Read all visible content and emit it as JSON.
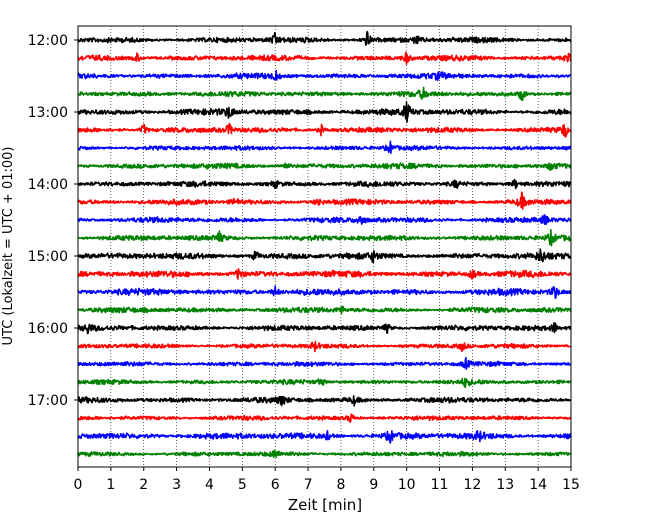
{
  "chart_data": {
    "type": "line",
    "title": "",
    "xlabel": "Zeit  [min]",
    "ylabel": "UTC (Lokalzeit = UTC + 01:00)",
    "xlim": [
      0,
      15
    ],
    "x_ticks": [
      "0",
      "1",
      "2",
      "3",
      "4",
      "5",
      "6",
      "7",
      "8",
      "9",
      "10",
      "11",
      "12",
      "13",
      "14",
      "15"
    ],
    "y_tick_labels": [
      "12:00",
      "13:00",
      "14:00",
      "15:00",
      "16:00",
      "17:00"
    ],
    "grid": "vertical dotted at each minute",
    "trace_interval_minutes": 15,
    "colors_cycle": [
      "#000000",
      "#ff0000",
      "#0000ff",
      "#008000"
    ],
    "traces": [
      {
        "start": "12:00",
        "color": "#000000",
        "amp": 3,
        "spikes": [
          [
            6.0,
            6
          ],
          [
            8.8,
            9
          ],
          [
            10.3,
            4
          ]
        ]
      },
      {
        "start": "12:15",
        "color": "#ff0000",
        "amp": 3,
        "spikes": [
          [
            1.8,
            5
          ],
          [
            10.0,
            6
          ],
          [
            14.9,
            5
          ]
        ]
      },
      {
        "start": "12:30",
        "color": "#0000ff",
        "amp": 3,
        "spikes": [
          [
            6.0,
            5
          ],
          [
            11.0,
            4
          ]
        ]
      },
      {
        "start": "12:45",
        "color": "#008000",
        "amp": 3,
        "spikes": [
          [
            10.5,
            5
          ],
          [
            13.5,
            7
          ]
        ]
      },
      {
        "start": "13:00",
        "color": "#000000",
        "amp": 3.5,
        "spikes": [
          [
            4.6,
            6
          ],
          [
            10.0,
            10
          ]
        ]
      },
      {
        "start": "13:15",
        "color": "#ff0000",
        "amp": 3,
        "spikes": [
          [
            2.0,
            6
          ],
          [
            4.6,
            6
          ],
          [
            7.4,
            5
          ],
          [
            14.8,
            8
          ]
        ]
      },
      {
        "start": "13:30",
        "color": "#0000ff",
        "amp": 2.5,
        "spikes": [
          [
            9.5,
            6
          ]
        ]
      },
      {
        "start": "13:45",
        "color": "#008000",
        "amp": 3,
        "spikes": [
          [
            6.3,
            4
          ],
          [
            14.4,
            5
          ]
        ]
      },
      {
        "start": "14:00",
        "color": "#000000",
        "amp": 3,
        "spikes": [
          [
            6.0,
            4
          ],
          [
            11.5,
            4
          ],
          [
            13.3,
            5
          ]
        ]
      },
      {
        "start": "14:15",
        "color": "#ff0000",
        "amp": 3,
        "spikes": [
          [
            4.8,
            5
          ],
          [
            7.3,
            5
          ],
          [
            13.5,
            8
          ]
        ]
      },
      {
        "start": "14:30",
        "color": "#0000ff",
        "amp": 3,
        "spikes": [
          [
            8.6,
            6
          ],
          [
            14.2,
            5
          ]
        ]
      },
      {
        "start": "14:45",
        "color": "#008000",
        "amp": 3,
        "spikes": [
          [
            4.3,
            5
          ],
          [
            14.4,
            7
          ]
        ]
      },
      {
        "start": "15:00",
        "color": "#000000",
        "amp": 3.5,
        "spikes": [
          [
            5.4,
            5
          ],
          [
            9.0,
            5
          ],
          [
            14.1,
            7
          ]
        ]
      },
      {
        "start": "15:15",
        "color": "#ff0000",
        "amp": 3.5,
        "spikes": [
          [
            4.9,
            7
          ],
          [
            12.0,
            5
          ]
        ]
      },
      {
        "start": "15:30",
        "color": "#0000ff",
        "amp": 3.5,
        "spikes": [
          [
            6.0,
            5
          ],
          [
            14.5,
            8
          ]
        ]
      },
      {
        "start": "15:45",
        "color": "#008000",
        "amp": 3,
        "spikes": [
          [
            8.0,
            4
          ]
        ]
      },
      {
        "start": "16:00",
        "color": "#000000",
        "amp": 3,
        "spikes": [
          [
            0.3,
            5
          ],
          [
            9.4,
            5
          ],
          [
            14.5,
            5
          ]
        ]
      },
      {
        "start": "16:15",
        "color": "#ff0000",
        "amp": 2.5,
        "spikes": [
          [
            7.2,
            5
          ],
          [
            11.7,
            5
          ]
        ]
      },
      {
        "start": "16:30",
        "color": "#0000ff",
        "amp": 2.5,
        "spikes": [
          [
            11.8,
            5
          ]
        ]
      },
      {
        "start": "16:45",
        "color": "#008000",
        "amp": 2.5,
        "spikes": [
          [
            7.4,
            4
          ],
          [
            11.8,
            5
          ]
        ]
      },
      {
        "start": "17:00",
        "color": "#000000",
        "amp": 3,
        "spikes": [
          [
            6.2,
            5
          ],
          [
            8.4,
            4
          ]
        ]
      },
      {
        "start": "17:15",
        "color": "#ff0000",
        "amp": 2.5,
        "spikes": [
          [
            8.3,
            5
          ]
        ]
      },
      {
        "start": "17:30",
        "color": "#0000ff",
        "amp": 3.5,
        "spikes": [
          [
            7.6,
            4
          ],
          [
            9.5,
            6
          ],
          [
            12.2,
            5
          ]
        ]
      },
      {
        "start": "17:45",
        "color": "#008000",
        "amp": 2.5,
        "spikes": [
          [
            6.0,
            4
          ]
        ]
      }
    ]
  }
}
